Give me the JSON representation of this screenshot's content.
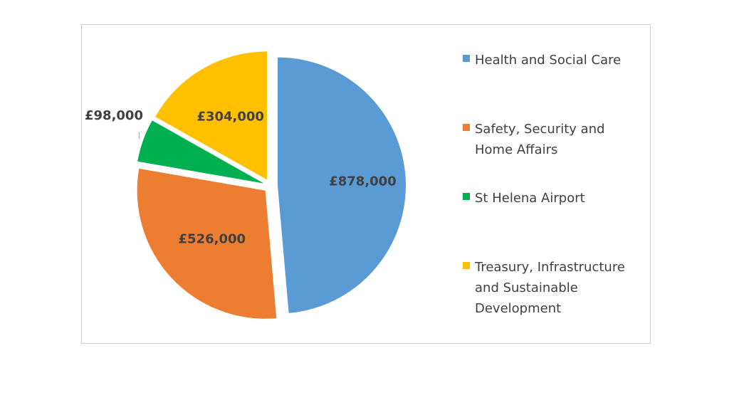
{
  "chart_data": {
    "type": "pie",
    "title": "",
    "categories": [
      "Health and Social Care",
      "Safety, Security and Home Affairs",
      "St Helena Airport",
      "Treasury, Infrastructure and Sustainable Development"
    ],
    "values": [
      878000,
      526000,
      98000,
      304000
    ],
    "data_labels": [
      "£878,000",
      "£526,000",
      "£98,000",
      "£304,000"
    ],
    "colors": [
      "#5B9BD5",
      "#ED7D31",
      "#00B050",
      "#FFC000"
    ],
    "exploded": true,
    "legend": "right"
  }
}
